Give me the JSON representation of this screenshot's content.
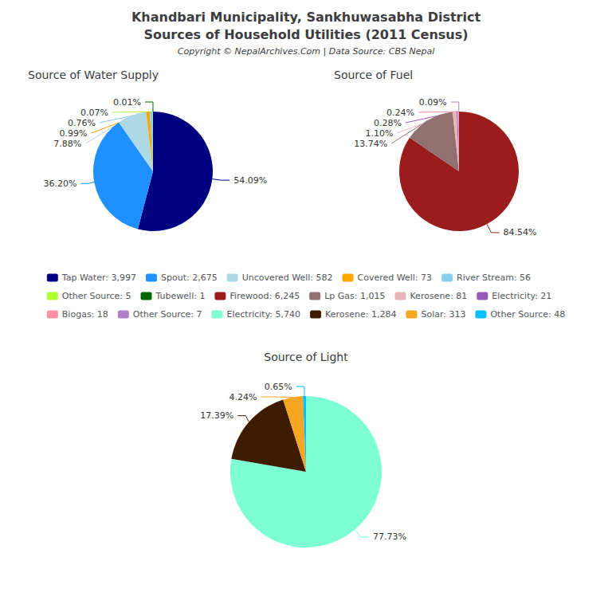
{
  "title": "Khandbari Municipality, Sankhuwasabha District",
  "subtitle": "Sources of Household Utilities (2011 Census)",
  "annotations": [
    "Copyright © NepalArchives.Com | Data Source: CBS Nepal"
  ],
  "legend": "center",
  "chart_data": [
    {
      "type": "pie",
      "title": "Source of Water Supply",
      "categories": [
        "Tap Water: 3,997",
        "Spout: 2,675",
        "Uncovered Well: 582",
        "Covered Well: 73",
        "River Stream: 56",
        "Other Source: 5",
        "Tubewell: 1"
      ],
      "values": [
        54.09,
        36.2,
        7.88,
        0.99,
        0.76,
        0.07,
        0.01
      ],
      "value_labels": [
        "54.09%",
        "36.20%",
        "7.88%",
        "0.99%",
        "0.76%",
        "0.07%",
        "0.01%"
      ],
      "colors": [
        "#000080",
        "#1e90ff",
        "#add8e6",
        "#ffa500",
        "#87ceeb",
        "#adff2f",
        "#006400"
      ],
      "data_labels": true
    },
    {
      "type": "pie",
      "title": "Source of Fuel",
      "categories": [
        "Firewood: 6,245",
        "Lp Gas: 1,015",
        "Kerosene: 81",
        "Electricity: 21",
        "Biogas: 18",
        "Other Source: 7"
      ],
      "values": [
        84.54,
        13.74,
        1.1,
        0.28,
        0.24,
        0.09
      ],
      "value_labels": [
        "84.54%",
        "13.74%",
        "1.10%",
        "0.28%",
        "0.24%",
        "0.09%"
      ],
      "colors": [
        "#9b1c1c",
        "#907070",
        "#e8b4b8",
        "#9b59b6",
        "#ff8fa3",
        "#b07ec8"
      ],
      "data_labels": true
    },
    {
      "type": "pie",
      "title": "Source of Light",
      "categories": [
        "Electricity: 5,740",
        "Kerosene: 1,284",
        "Solar: 313",
        "Other Source: 48"
      ],
      "values": [
        77.73,
        17.39,
        4.24,
        0.65
      ],
      "value_labels": [
        "77.73%",
        "17.39%",
        "4.24%",
        "0.65%"
      ],
      "colors": [
        "#7fffd4",
        "#3d1c02",
        "#f5a623",
        "#00bfff"
      ],
      "data_labels": true
    }
  ]
}
